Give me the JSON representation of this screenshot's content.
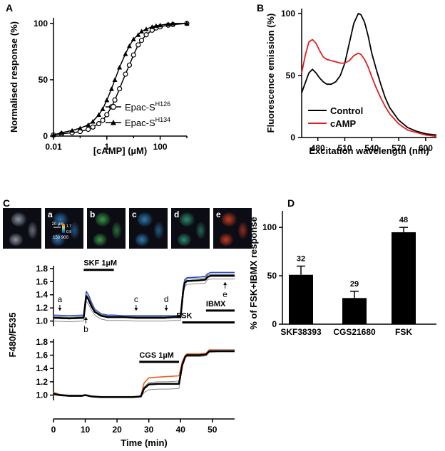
{
  "chart_data": [
    {
      "panel": "A",
      "type": "line",
      "xscale": "log",
      "xlabel": "[cAMP] (µM)",
      "ylabel": "Normalised response (%)",
      "xlim": [
        0.01,
        1000
      ],
      "ylim": [
        0,
        105
      ],
      "xticks": [
        "0.01",
        "1",
        "100"
      ],
      "yticks": [
        "0",
        "50",
        "100"
      ],
      "legend_position": "bottom-right",
      "series": [
        {
          "name": "Epac-S",
          "superscript": "H126",
          "marker": "open-circle",
          "x": [
            0.01,
            0.02,
            0.05,
            0.1,
            0.2,
            0.3,
            0.5,
            0.7,
            1,
            1.5,
            2,
            3,
            5,
            7,
            10,
            15,
            20,
            30,
            50,
            70,
            100,
            200,
            300,
            1000
          ],
          "y": [
            1,
            2,
            3,
            4,
            6,
            8,
            11,
            14,
            19,
            26,
            32,
            42,
            55,
            63,
            72,
            81,
            85,
            90,
            94,
            96,
            97,
            98.5,
            99,
            100
          ]
        },
        {
          "name": "Epac-S",
          "superscript": "H134",
          "marker": "filled-triangle",
          "x": [
            0.01,
            0.02,
            0.05,
            0.1,
            0.2,
            0.3,
            0.5,
            0.7,
            1,
            1.5,
            2,
            3,
            5,
            7,
            10,
            15,
            20,
            30,
            50,
            70,
            100,
            200,
            300,
            1000
          ],
          "y": [
            1,
            3,
            5,
            7,
            10,
            13,
            19,
            24,
            32,
            42,
            50,
            61,
            73,
            80,
            86,
            90,
            93,
            95,
            97,
            98,
            98.5,
            99.5,
            100,
            100
          ]
        }
      ]
    },
    {
      "panel": "B",
      "type": "line",
      "xlabel": "Excitation wavelength (nm)",
      "ylabel": "Fluorescence emission (%)",
      "xlim": [
        462,
        612
      ],
      "ylim": [
        0,
        104
      ],
      "xticks": [
        "480",
        "510",
        "540",
        "570",
        "600"
      ],
      "yticks": [
        "0",
        "50",
        "100"
      ],
      "legend_position": "bottom-left",
      "series": [
        {
          "name": "Control",
          "color": "#000000",
          "x": [
            462,
            466,
            470,
            474,
            478,
            482,
            486,
            490,
            495,
            500,
            505,
            510,
            515,
            520,
            525,
            528,
            532,
            536,
            540,
            545,
            550,
            555,
            560,
            570,
            580,
            590,
            600,
            612
          ],
          "y": [
            36,
            44,
            52,
            55,
            52,
            48,
            45,
            43,
            43,
            45,
            50,
            60,
            76,
            92,
            100,
            99,
            93,
            82,
            68,
            55,
            43,
            32,
            24,
            14,
            8,
            5,
            3,
            2
          ]
        },
        {
          "name": "cAMP",
          "color": "#e02020",
          "x": [
            462,
            466,
            470,
            474,
            478,
            482,
            486,
            490,
            495,
            500,
            505,
            510,
            515,
            520,
            525,
            528,
            532,
            536,
            540,
            545,
            550,
            555,
            560,
            570,
            580,
            590,
            600,
            612
          ],
          "y": [
            52,
            66,
            77,
            79,
            76,
            70,
            65,
            63,
            62,
            61,
            60,
            60,
            62,
            66,
            68,
            67,
            63,
            57,
            49,
            40,
            32,
            25,
            19,
            11,
            6,
            4,
            2,
            1
          ]
        }
      ]
    },
    {
      "panel": "C",
      "type": "line",
      "xlabel": "Time (min)",
      "ylabel": "F480/F535",
      "xlim": [
        0,
        57
      ],
      "xticks": [
        "0",
        "10",
        "20",
        "30",
        "40",
        "50"
      ],
      "images": [
        {
          "label": "",
          "tint": "#9aa4b0"
        },
        {
          "label": "a",
          "tint": "#2e78b8"
        },
        {
          "label": "b",
          "tint": "#3aa84a"
        },
        {
          "label": "c",
          "tint": "#2f86c0"
        },
        {
          "label": "d",
          "tint": "#2f9a78"
        },
        {
          "label": "e",
          "tint": "#d84020"
        }
      ],
      "colorbar": {
        "scale": "20 µm",
        "high": "1.7",
        "low": "0.9",
        "range": "150 900"
      },
      "subplots": [
        {
          "ylim": [
            0.92,
            1.82
          ],
          "yticks": [
            "1.0",
            "1.2",
            "1.4",
            "1.6",
            "1.8"
          ],
          "annotations": [
            {
              "text": "a",
              "time": 2,
              "dir": "down"
            },
            {
              "text": "b",
              "time": 10.2,
              "dir": "up"
            },
            {
              "text": "c",
              "time": 26,
              "dir": "down"
            },
            {
              "text": "d",
              "time": 35.5,
              "dir": "down"
            },
            {
              "text": "e",
              "time": 54,
              "dir": "up"
            }
          ],
          "bars": [
            {
              "label": "SKF 1µM",
              "start": 9.5,
              "end": 19,
              "level": 1.78
            },
            {
              "label": "FSK",
              "start": 40.5,
              "end": 57,
              "level": 0.98
            },
            {
              "label": "IBMX",
              "start": 48,
              "end": 57,
              "level": 1.16
            }
          ],
          "series": [
            {
              "name": "mean",
              "color": "#000000",
              "x": [
                0,
                5,
                9.5,
                10.3,
                11,
                12,
                13,
                15,
                17,
                19,
                22,
                26,
                30,
                35,
                38,
                40,
                40.8,
                41.3,
                42,
                46,
                47.8,
                48.5,
                49.5,
                52,
                57
              ],
              "y": [
                1.05,
                1.04,
                1.05,
                1.38,
                1.33,
                1.22,
                1.14,
                1.08,
                1.06,
                1.06,
                1.06,
                1.05,
                1.05,
                1.05,
                1.06,
                1.06,
                1.45,
                1.58,
                1.61,
                1.62,
                1.63,
                1.67,
                1.69,
                1.69,
                1.69
              ]
            },
            {
              "name": "cell-blue",
              "color": "#2a4fc9",
              "x": [
                0,
                5,
                9.5,
                10.3,
                11,
                12,
                13,
                15,
                17,
                19,
                22,
                26,
                30,
                35,
                38,
                40,
                40.8,
                41.3,
                42,
                46,
                47.8,
                48.5,
                49.5,
                52,
                57
              ],
              "y": [
                1.09,
                1.08,
                1.09,
                1.45,
                1.4,
                1.28,
                1.18,
                1.11,
                1.09,
                1.09,
                1.08,
                1.08,
                1.08,
                1.08,
                1.08,
                1.09,
                1.5,
                1.63,
                1.66,
                1.67,
                1.68,
                1.72,
                1.74,
                1.74,
                1.74
              ]
            },
            {
              "name": "cell-gray-1",
              "color": "#888888",
              "x": [
                0,
                5,
                9.5,
                10.3,
                11,
                12,
                13,
                15,
                17,
                19,
                22,
                26,
                30,
                35,
                38,
                40,
                40.8,
                41.3,
                42,
                46,
                47.8,
                48.5,
                49.5,
                52,
                57
              ],
              "y": [
                1.0,
                0.99,
                1.0,
                1.3,
                1.26,
                1.16,
                1.09,
                1.03,
                1.01,
                1.01,
                1.01,
                1.0,
                1.0,
                1.0,
                1.01,
                1.01,
                1.4,
                1.52,
                1.56,
                1.57,
                1.58,
                1.63,
                1.64,
                1.64,
                1.64
              ]
            },
            {
              "name": "cell-gray-2",
              "color": "#888888",
              "x": [
                0,
                5,
                9.5,
                10.3,
                11,
                12,
                13,
                15,
                17,
                19,
                22,
                26,
                30,
                35,
                38,
                40,
                40.8,
                41.3,
                42,
                46,
                47.8,
                48.5,
                49.5,
                52,
                57
              ],
              "y": [
                1.07,
                1.06,
                1.07,
                1.41,
                1.36,
                1.25,
                1.17,
                1.1,
                1.08,
                1.08,
                1.07,
                1.07,
                1.07,
                1.07,
                1.07,
                1.08,
                1.48,
                1.6,
                1.64,
                1.65,
                1.66,
                1.7,
                1.71,
                1.71,
                1.71
              ]
            }
          ]
        },
        {
          "ylim": [
            0.92,
            1.82
          ],
          "yticks": [
            "1.0",
            "1.2",
            "1.4",
            "1.6",
            "1.8"
          ],
          "bars": [
            {
              "label": "CGS 1µM",
              "start": 27,
              "end": 39.5,
              "level": 1.5
            }
          ],
          "series": [
            {
              "name": "mean",
              "color": "#000000",
              "x": [
                0,
                2,
                5,
                9,
                10,
                11,
                12,
                15,
                20,
                25,
                27.5,
                28.5,
                30,
                33,
                36,
                39.5,
                40.5,
                41.5,
                42,
                46,
                48,
                49,
                52,
                57
              ],
              "y": [
                1.02,
                1.0,
                0.99,
                0.99,
                1.0,
                0.99,
                0.98,
                0.97,
                0.97,
                0.97,
                0.98,
                1.1,
                1.16,
                1.17,
                1.17,
                1.17,
                1.45,
                1.58,
                1.6,
                1.6,
                1.61,
                1.66,
                1.66,
                1.66
              ]
            },
            {
              "name": "cell-orange",
              "color": "#e8601c",
              "x": [
                0,
                2,
                5,
                9,
                10,
                11,
                12,
                15,
                20,
                25,
                27.5,
                28.5,
                30,
                33,
                36,
                39.5,
                40.5,
                41.5,
                42,
                46,
                48,
                49,
                52,
                57
              ],
              "y": [
                1.04,
                1.01,
                0.99,
                0.99,
                1.0,
                0.99,
                0.98,
                0.97,
                0.97,
                0.97,
                0.99,
                1.18,
                1.26,
                1.27,
                1.28,
                1.29,
                1.5,
                1.6,
                1.62,
                1.62,
                1.63,
                1.68,
                1.68,
                1.68
              ]
            },
            {
              "name": "cell-gray-1",
              "color": "#888888",
              "x": [
                0,
                2,
                5,
                9,
                10,
                11,
                12,
                15,
                20,
                25,
                27.5,
                28.5,
                30,
                33,
                36,
                39.5,
                40.5,
                41.5,
                42,
                46,
                48,
                49,
                52,
                57
              ],
              "y": [
                1.0,
                0.99,
                0.98,
                0.98,
                0.99,
                0.98,
                0.97,
                0.96,
                0.96,
                0.96,
                0.97,
                1.04,
                1.08,
                1.09,
                1.09,
                1.1,
                1.42,
                1.56,
                1.58,
                1.58,
                1.59,
                1.64,
                1.65,
                1.65
              ]
            },
            {
              "name": "cell-gray-2",
              "color": "#888888",
              "x": [
                0,
                2,
                5,
                9,
                10,
                11,
                12,
                15,
                20,
                25,
                27.5,
                28.5,
                30,
                33,
                36,
                39.5,
                40.5,
                41.5,
                42,
                46,
                48,
                49,
                52,
                57
              ],
              "y": [
                1.03,
                1.01,
                1.0,
                1.0,
                1.01,
                1.0,
                0.99,
                0.98,
                0.98,
                0.98,
                0.99,
                1.12,
                1.19,
                1.2,
                1.2,
                1.21,
                1.47,
                1.59,
                1.61,
                1.61,
                1.62,
                1.67,
                1.68,
                1.68
              ]
            }
          ]
        }
      ]
    },
    {
      "panel": "D",
      "type": "bar",
      "ylabel": "% of FSK+IBMX response",
      "ylim": [
        0,
        120
      ],
      "yticks": [
        "0",
        "50",
        "100"
      ],
      "categories": [
        "SKF38393",
        "CGS21680",
        "FSK"
      ],
      "values": [
        51,
        27,
        95
      ],
      "errors": [
        9,
        7,
        5
      ],
      "n_labels": [
        "32",
        "29",
        "48"
      ]
    }
  ]
}
